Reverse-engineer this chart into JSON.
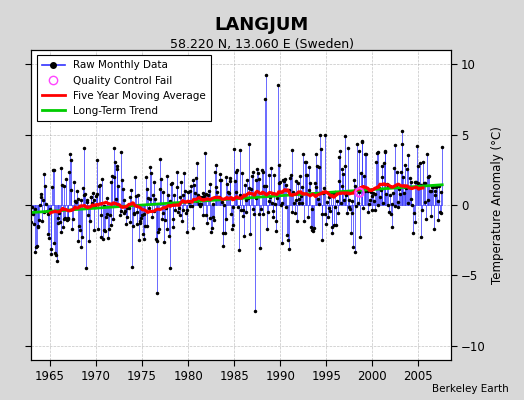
{
  "title": "LANGJUM",
  "subtitle": "58.220 N, 13.060 E (Sweden)",
  "ylabel": "Temperature Anomaly (°C)",
  "credit": "Berkeley Earth",
  "xlim": [
    1963.0,
    2008.5
  ],
  "ylim": [
    -11,
    11
  ],
  "yticks": [
    -10,
    -5,
    0,
    5,
    10
  ],
  "xticks": [
    1965,
    1970,
    1975,
    1980,
    1985,
    1990,
    1995,
    2000,
    2005
  ],
  "raw_color": "#3333ff",
  "moving_avg_color": "#ff0000",
  "trend_color": "#00cc00",
  "qc_fail_color": "#ff44ff",
  "background_color": "#d8d8d8",
  "plot_bg_color": "#ffffff",
  "grid_color": "#aaaaaa"
}
